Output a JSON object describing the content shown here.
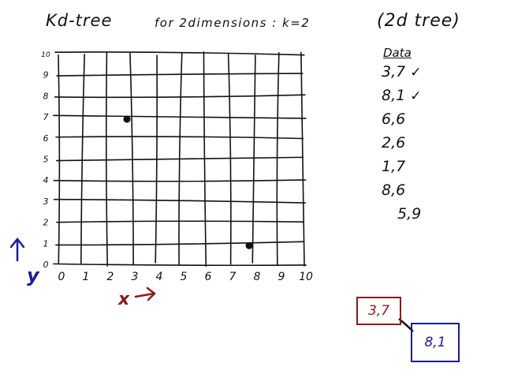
{
  "title": {
    "kd": "Kd-tree",
    "for": "for 2dimensions : k=2",
    "paren": "(2d tree)"
  },
  "grid": {
    "x_ticks": [
      "0",
      "1",
      "2",
      "3",
      "4",
      "5",
      "6",
      "7",
      "8",
      "9",
      "10"
    ],
    "y_ticks": [
      "0",
      "1",
      "2",
      "3",
      "4",
      "5",
      "6",
      "7",
      "8",
      "9",
      "10"
    ],
    "x_label": "x",
    "y_label": "y",
    "points": [
      {
        "x": 3,
        "y": 7
      },
      {
        "x": 8,
        "y": 1
      }
    ]
  },
  "data": {
    "heading": "Data",
    "rows": [
      {
        "value": "3,7",
        "checked": true
      },
      {
        "value": "8,1",
        "checked": true
      },
      {
        "value": "6,6",
        "checked": false
      },
      {
        "value": "2,6",
        "checked": false
      },
      {
        "value": "1,7",
        "checked": false
      },
      {
        "value": "8,6",
        "checked": false
      },
      {
        "value": "5,9",
        "checked": false
      }
    ],
    "check_glyph": "✓"
  },
  "tree": {
    "root": "3,7",
    "child": "8,1",
    "root_color": "#8b1a1a",
    "child_color": "#1a1aa0"
  },
  "colors": {
    "ink": "#111111",
    "axis_label_x": "#8b1a1a",
    "axis_label_y": "#1a1aa0"
  }
}
